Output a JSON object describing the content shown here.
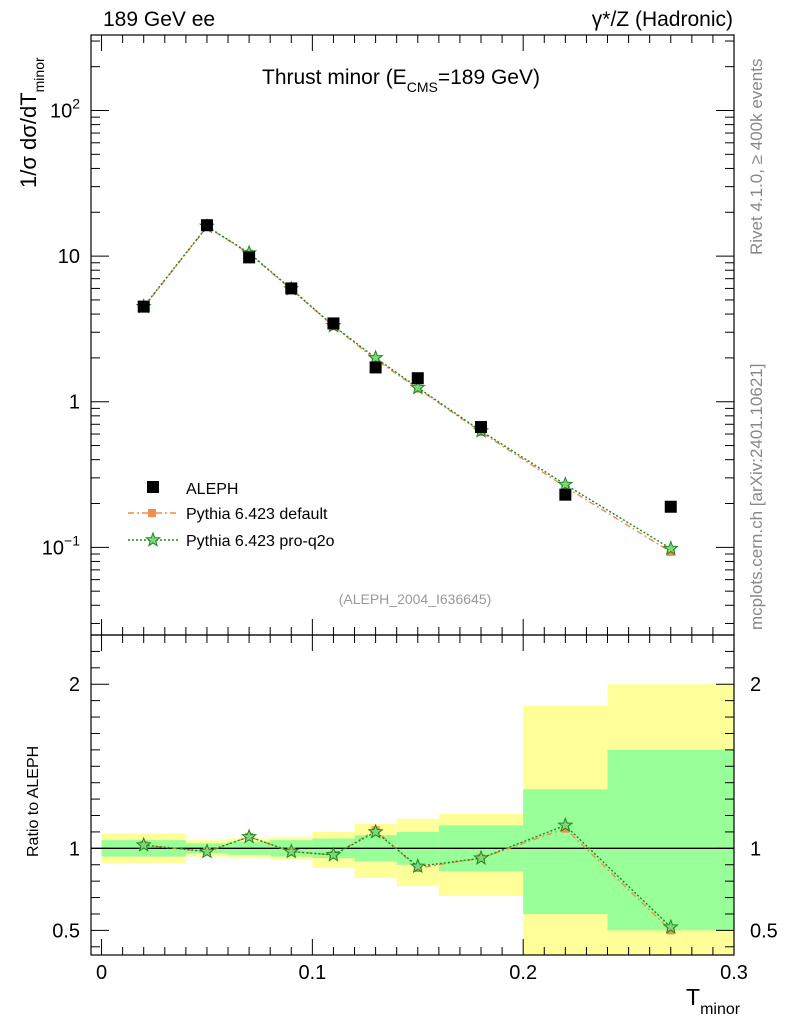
{
  "header": {
    "left": "189 GeV ee",
    "right": "γ*/Z (Hadronic)"
  },
  "side_text": {
    "top": "Rivet 4.1.0, ≥ 400k events",
    "bottom": "mcplots.cern.ch [arXiv:2401.10621]"
  },
  "colors": {
    "data": "#000000",
    "default": "#f58b4c",
    "proq2o": "#1a8a1a",
    "band_inner": "#99ff99",
    "band_outer": "#ffff99"
  },
  "chart_data": [
    {
      "type": "line",
      "title_main": "Thrust minor (E",
      "title_sub": "CMS",
      "title_rest": "=189 GeV)",
      "ylabel_main": "1/σ  dσ/dT",
      "ylabel_sub": "minor",
      "yscale": "log",
      "ylim": [
        0.025,
        330
      ],
      "xlim": [
        -0.005,
        0.3
      ],
      "yticks": [
        {
          "v": 0.1,
          "label": "10",
          "sup": "−1"
        },
        {
          "v": 1,
          "label": "1",
          "sup": ""
        },
        {
          "v": 10,
          "label": "10",
          "sup": ""
        },
        {
          "v": 100,
          "label": "10",
          "sup": "2"
        }
      ],
      "analysis_tag": "(ALEPH_2004_I636645)",
      "legend": [
        "ALEPH",
        "Pythia 6.423 default",
        "Pythia 6.423 pro-q2o"
      ],
      "series": [
        {
          "name": "ALEPH",
          "x": [
            0.02,
            0.05,
            0.07,
            0.09,
            0.11,
            0.13,
            0.15,
            0.18,
            0.22,
            0.27
          ],
          "y": [
            4.5,
            16.3,
            9.8,
            6.0,
            3.45,
            1.72,
            1.45,
            0.67,
            0.23,
            0.19
          ]
        },
        {
          "name": "Pythia 6.423 default",
          "x": [
            0.02,
            0.05,
            0.07,
            0.09,
            0.11,
            0.13,
            0.15,
            0.18,
            0.22,
            0.27
          ],
          "y": [
            4.45,
            15.9,
            10.4,
            5.9,
            3.3,
            1.95,
            1.23,
            0.62,
            0.26,
            0.093
          ]
        },
        {
          "name": "Pythia 6.423 pro-q2o",
          "x": [
            0.02,
            0.05,
            0.07,
            0.09,
            0.11,
            0.13,
            0.15,
            0.18,
            0.22,
            0.27
          ],
          "y": [
            4.5,
            16.0,
            10.5,
            5.95,
            3.32,
            2.0,
            1.25,
            0.63,
            0.27,
            0.098
          ]
        }
      ]
    },
    {
      "type": "line",
      "ylabel": "Ratio to ALEPH",
      "xlabel_main": "T",
      "xlabel_sub": "minor",
      "ylim": [
        0.35,
        2.3
      ],
      "xlim": [
        -0.005,
        0.3
      ],
      "xticks": [
        0,
        0.1,
        0.2,
        0.3
      ],
      "xtick_labels": [
        "0",
        "0.1",
        "0.2",
        "0.3"
      ],
      "yticks": [
        0.5,
        1,
        2
      ],
      "ytick_labels": [
        "0.5",
        "1",
        "2"
      ],
      "bins": [
        {
          "lo": 0.0,
          "hi": 0.04,
          "inner": [
            0.95,
            1.05
          ],
          "outer": [
            0.91,
            1.09
          ]
        },
        {
          "lo": 0.04,
          "hi": 0.06,
          "inner": [
            0.97,
            1.03
          ],
          "outer": [
            0.95,
            1.05
          ]
        },
        {
          "lo": 0.06,
          "hi": 0.08,
          "inner": [
            0.96,
            1.04
          ],
          "outer": [
            0.94,
            1.06
          ]
        },
        {
          "lo": 0.08,
          "hi": 0.1,
          "inner": [
            0.95,
            1.05
          ],
          "outer": [
            0.93,
            1.07
          ]
        },
        {
          "lo": 0.1,
          "hi": 0.12,
          "inner": [
            0.94,
            1.06
          ],
          "outer": [
            0.88,
            1.1
          ]
        },
        {
          "lo": 0.12,
          "hi": 0.14,
          "inner": [
            0.92,
            1.08
          ],
          "outer": [
            0.82,
            1.15
          ]
        },
        {
          "lo": 0.14,
          "hi": 0.16,
          "inner": [
            0.9,
            1.1
          ],
          "outer": [
            0.77,
            1.18
          ]
        },
        {
          "lo": 0.16,
          "hi": 0.2,
          "inner": [
            0.86,
            1.14
          ],
          "outer": [
            0.71,
            1.21
          ]
        },
        {
          "lo": 0.2,
          "hi": 0.24,
          "inner": [
            0.6,
            1.36
          ],
          "outer": [
            0.35,
            1.87
          ]
        },
        {
          "lo": 0.24,
          "hi": 0.3,
          "inner": [
            0.5,
            1.6
          ],
          "outer": [
            0.35,
            2.0
          ]
        }
      ],
      "series": [
        {
          "name": "Pythia 6.423 default",
          "x": [
            0.02,
            0.05,
            0.07,
            0.09,
            0.11,
            0.13,
            0.15,
            0.18,
            0.22,
            0.27
          ],
          "y": [
            1.02,
            0.98,
            1.07,
            0.98,
            0.96,
            1.11,
            0.88,
            0.94,
            1.12,
            0.5
          ]
        },
        {
          "name": "Pythia 6.423 pro-q2o",
          "x": [
            0.02,
            0.05,
            0.07,
            0.09,
            0.11,
            0.13,
            0.15,
            0.18,
            0.22,
            0.27
          ],
          "y": [
            1.02,
            0.98,
            1.07,
            0.98,
            0.96,
            1.1,
            0.89,
            0.94,
            1.14,
            0.52
          ]
        }
      ]
    }
  ]
}
